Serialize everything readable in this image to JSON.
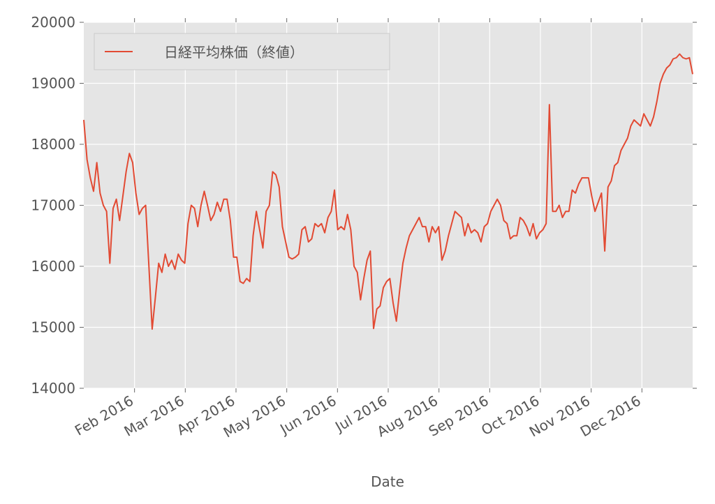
{
  "chart_data": {
    "type": "line",
    "xlabel": "Date",
    "xlim": [
      "2016-01",
      "2017-01"
    ],
    "ylim": [
      14000,
      20000
    ],
    "yticks": [
      14000,
      15000,
      16000,
      17000,
      18000,
      19000,
      20000
    ],
    "xticks": [
      {
        "value": "2016-02",
        "label": "Feb 2016"
      },
      {
        "value": "2016-03",
        "label": "Mar 2016"
      },
      {
        "value": "2016-04",
        "label": "Apr 2016"
      },
      {
        "value": "2016-05",
        "label": "May 2016"
      },
      {
        "value": "2016-06",
        "label": "Jun 2016"
      },
      {
        "value": "2016-07",
        "label": "Jul 2016"
      },
      {
        "value": "2016-08",
        "label": "Aug 2016"
      },
      {
        "value": "2016-09",
        "label": "Sep 2016"
      },
      {
        "value": "2016-10",
        "label": "Oct 2016"
      },
      {
        "value": "2016-11",
        "label": "Nov 2016"
      },
      {
        "value": "2016-12",
        "label": "Dec 2016"
      }
    ],
    "grid": true,
    "legend": "upper left",
    "series": [
      {
        "name": "日経平均株価（終値）",
        "color": "#e24a33",
        "values": [
          18400,
          17750,
          17450,
          17230,
          17700,
          17200,
          17000,
          16900,
          16050,
          16950,
          17100,
          16750,
          17150,
          17550,
          17850,
          17700,
          17200,
          16850,
          16950,
          17000,
          16000,
          14970,
          15500,
          16050,
          15900,
          16200,
          16000,
          16100,
          15950,
          16200,
          16100,
          16050,
          16700,
          17000,
          16950,
          16650,
          17000,
          17230,
          17000,
          16750,
          16850,
          17050,
          16900,
          17100,
          17100,
          16750,
          16150,
          16150,
          15750,
          15720,
          15800,
          15750,
          16500,
          16900,
          16600,
          16300,
          16900,
          17000,
          17550,
          17500,
          17300,
          16650,
          16400,
          16150,
          16120,
          16150,
          16200,
          16600,
          16650,
          16400,
          16450,
          16700,
          16650,
          16700,
          16550,
          16800,
          16900,
          17250,
          16600,
          16650,
          16600,
          16850,
          16600,
          16000,
          15900,
          15450,
          15800,
          16100,
          16250,
          14980,
          15300,
          15350,
          15650,
          15750,
          15800,
          15400,
          15100,
          15600,
          16050,
          16300,
          16500,
          16600,
          16700,
          16800,
          16650,
          16650,
          16400,
          16650,
          16550,
          16650,
          16100,
          16250,
          16500,
          16700,
          16900,
          16850,
          16800,
          16500,
          16700,
          16550,
          16600,
          16550,
          16400,
          16650,
          16700,
          16900,
          17000,
          17100,
          17000,
          16750,
          16700,
          16450,
          16500,
          16500,
          16800,
          16750,
          16650,
          16500,
          16700,
          16450,
          16550,
          16600,
          16700,
          18650,
          16900,
          16900,
          17000,
          16800,
          16900,
          16900,
          17250,
          17200,
          17350,
          17450,
          17450,
          17450,
          17150,
          16900,
          17050,
          17200,
          16250,
          17300,
          17400,
          17650,
          17700,
          17900,
          18000,
          18100,
          18300,
          18400,
          18350,
          18300,
          18500,
          18400,
          18300,
          18450,
          18700,
          19000,
          19150,
          19250,
          19300,
          19400,
          19420,
          19480,
          19420,
          19400,
          19420,
          19150
        ]
      }
    ]
  }
}
